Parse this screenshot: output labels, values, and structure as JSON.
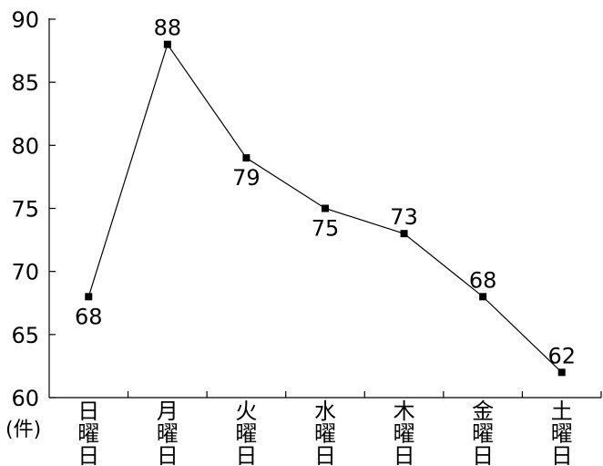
{
  "chart_data": {
    "type": "line",
    "title": "",
    "xlabel": "",
    "ylabel": "",
    "unit_label": "(件)",
    "categories": [
      "日曜日",
      "月曜日",
      "火曜日",
      "水曜日",
      "木曜日",
      "金曜日",
      "土曜日"
    ],
    "series": [
      {
        "values": [
          68,
          88,
          79,
          75,
          73,
          68,
          62
        ]
      }
    ],
    "data_labels": [
      "68",
      "88",
      "79",
      "75",
      "73",
      "68",
      "62"
    ],
    "label_positions": [
      "below",
      "above",
      "below",
      "below",
      "above",
      "above",
      "above"
    ],
    "ylim": [
      60,
      90
    ],
    "yticks": [
      60,
      65,
      70,
      75,
      80,
      85,
      90
    ],
    "ytick_labels": [
      "60",
      "65",
      "70",
      "75",
      "80",
      "85",
      "90"
    ],
    "grid": false,
    "legend": "none",
    "line_color": "#000000",
    "marker": "square"
  }
}
